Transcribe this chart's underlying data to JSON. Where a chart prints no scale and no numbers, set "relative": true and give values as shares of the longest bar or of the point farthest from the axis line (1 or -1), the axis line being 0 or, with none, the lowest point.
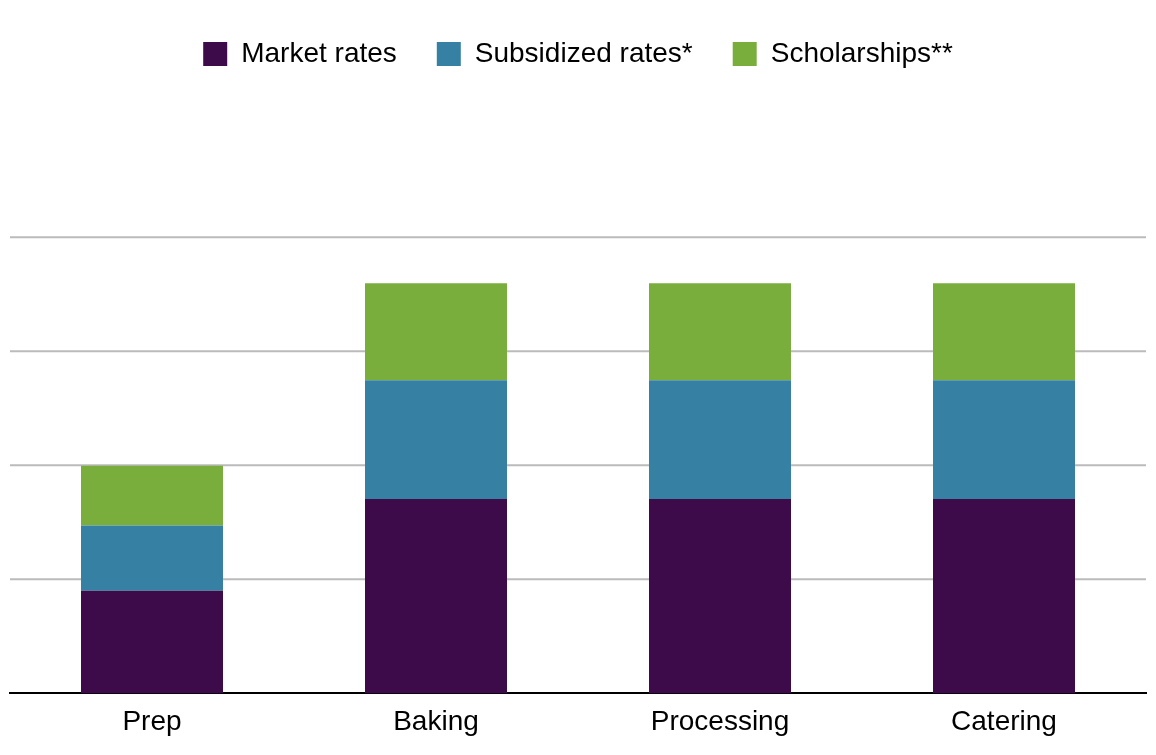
{
  "chart_data": {
    "type": "bar",
    "stacked": true,
    "relative": true,
    "categories": [
      "Prep",
      "Baking",
      "Processing",
      "Catering"
    ],
    "series": [
      {
        "name": "Market rates",
        "color": "#3d0a4a",
        "values": [
          0.25,
          0.474,
          0.474,
          0.474
        ]
      },
      {
        "name": "Subsidized rates*",
        "color": "#3680a3",
        "values": [
          0.159,
          0.289,
          0.289,
          0.289
        ]
      },
      {
        "name": "Scholarships**",
        "color": "#7aae3c",
        "values": [
          0.146,
          0.237,
          0.237,
          0.237
        ]
      }
    ],
    "ref_lines": [
      {
        "axis": "y",
        "value": 0.278,
        "color": "#bbbbbb"
      },
      {
        "axis": "y",
        "value": 0.556,
        "color": "#bbbbbb"
      },
      {
        "axis": "y",
        "value": 0.834,
        "color": "#bbbbbb"
      },
      {
        "axis": "y",
        "value": 1.112,
        "color": "#bbbbbb"
      }
    ],
    "legend": "top"
  }
}
